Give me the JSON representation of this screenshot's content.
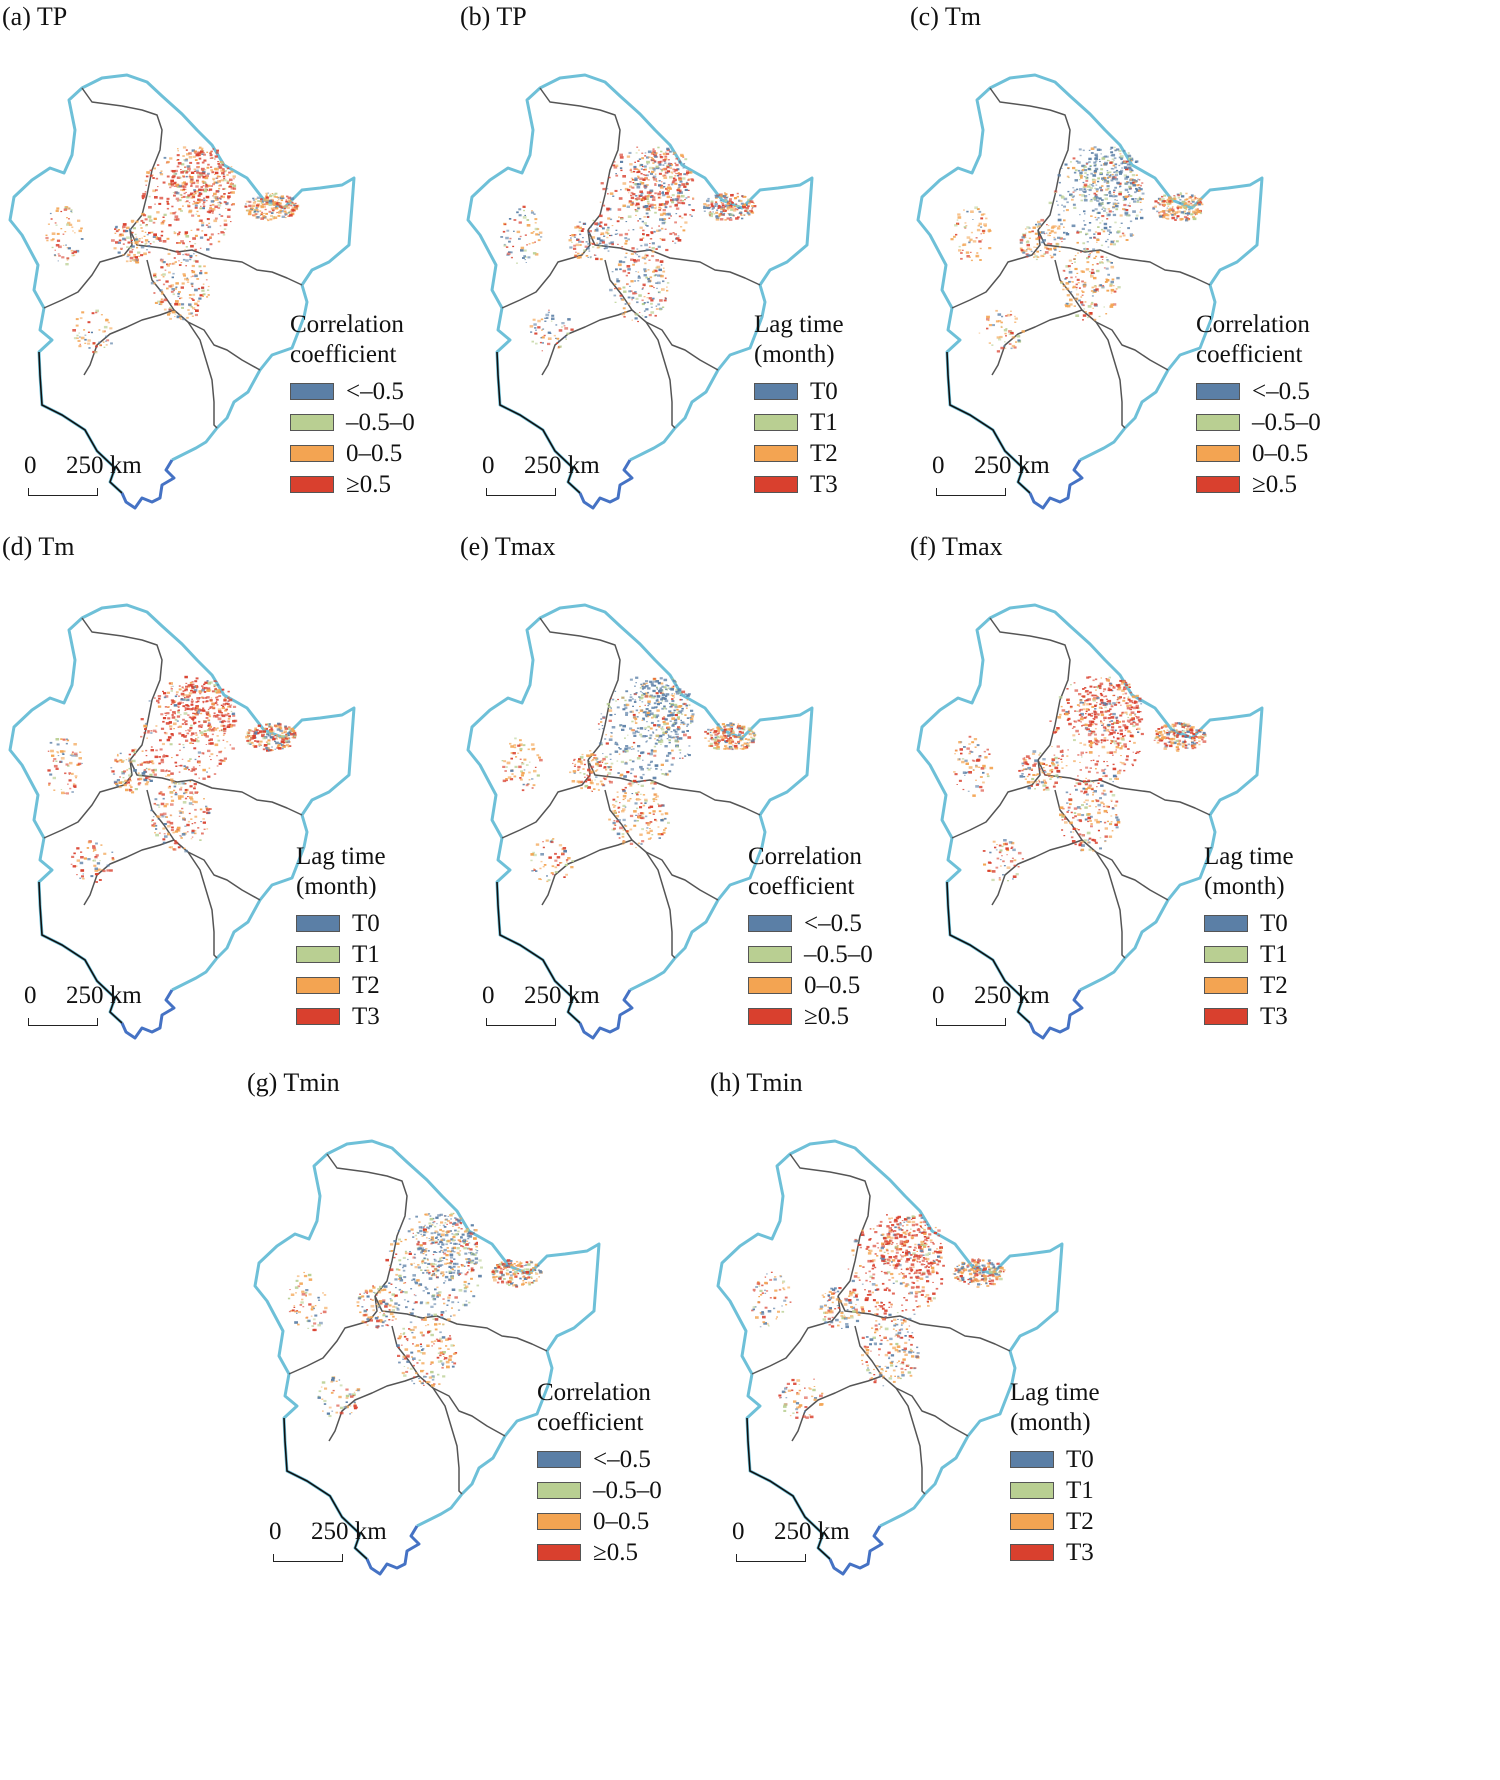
{
  "figure": {
    "panels": [
      {
        "label": "(a) TP",
        "legend_type": "corr"
      },
      {
        "label": "(b) TP",
        "legend_type": "lag"
      },
      {
        "label": "(c) Tm",
        "legend_type": "corr"
      },
      {
        "label": "(d) Tm",
        "legend_type": "lag"
      },
      {
        "label": "(e) Tmax",
        "legend_type": "corr"
      },
      {
        "label": "(f) Tmax",
        "legend_type": "lag"
      },
      {
        "label": "(g) Tmin",
        "legend_type": "corr"
      },
      {
        "label": "(h) Tmin",
        "legend_type": "lag"
      }
    ]
  },
  "legends": {
    "corr": {
      "title_line1": "Correlation",
      "title_line2": "coefficient",
      "items": [
        {
          "label": "<–0.5",
          "color": "#5B7FA6"
        },
        {
          "label": "–0.5–0",
          "color": "#B9CF92"
        },
        {
          "label": "0–0.5",
          "color": "#F3A452"
        },
        {
          "label": "≥0.5",
          "color": "#D9402E"
        }
      ]
    },
    "lag": {
      "title_line1": "Lag time",
      "title_line2": "(month)",
      "items": [
        {
          "label": "T0",
          "color": "#5B7FA6"
        },
        {
          "label": "T1",
          "color": "#B9CF92"
        },
        {
          "label": "T2",
          "color": "#F3A452"
        },
        {
          "label": "T3",
          "color": "#D9402E"
        }
      ]
    }
  },
  "scalebar": {
    "zero": "0",
    "distance": "250 km"
  },
  "colors": {
    "border_land": "#6EC0D8",
    "border_coast": "#4572C4",
    "province_lines": "#555555",
    "west_border": "#111111"
  }
}
